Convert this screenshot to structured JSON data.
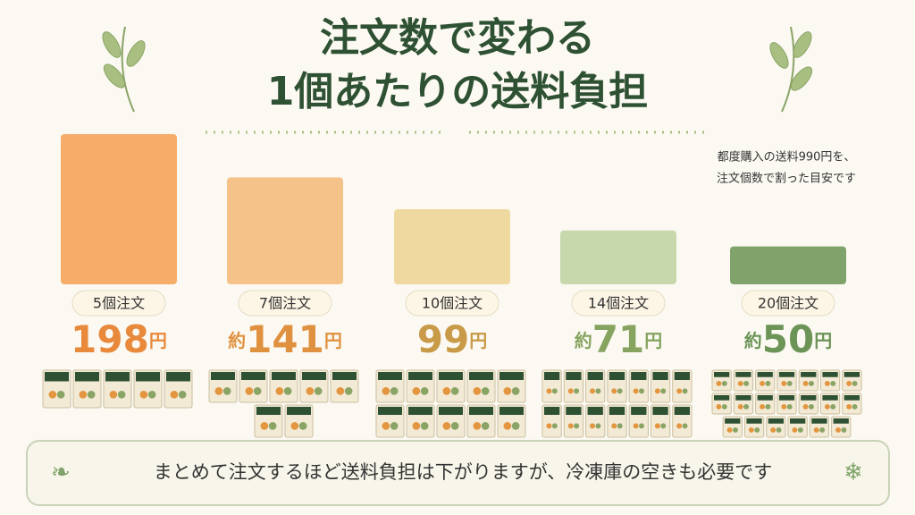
{
  "chart_data": {
    "type": "bar",
    "title_lines": [
      "注文数で変わる",
      "1個あたりの送料負担"
    ],
    "note_lines": [
      "都度購入の送料990円を、",
      "注文個数で割った目安です"
    ],
    "categories": [
      "5個注文",
      "7個注文",
      "10個注文",
      "14個注文",
      "20個注文"
    ],
    "values": [
      198,
      141,
      99,
      71,
      50
    ],
    "value_labels": [
      "198円",
      "約141円",
      "99円",
      "約71円",
      "約50円"
    ],
    "quantities": [
      5,
      7,
      10,
      14,
      20
    ],
    "colors": [
      "#f6ad6a",
      "#f5c389",
      "#f0d9a0",
      "#c8d8ad",
      "#7fa36a"
    ],
    "label_colors": [
      "#e8893c",
      "#e0913f",
      "#c99a48",
      "#86a35f",
      "#6b9456"
    ],
    "footer": "まとめて注文するほど送料負担は下がりますが、冷凍庫の空きも必要です"
  }
}
